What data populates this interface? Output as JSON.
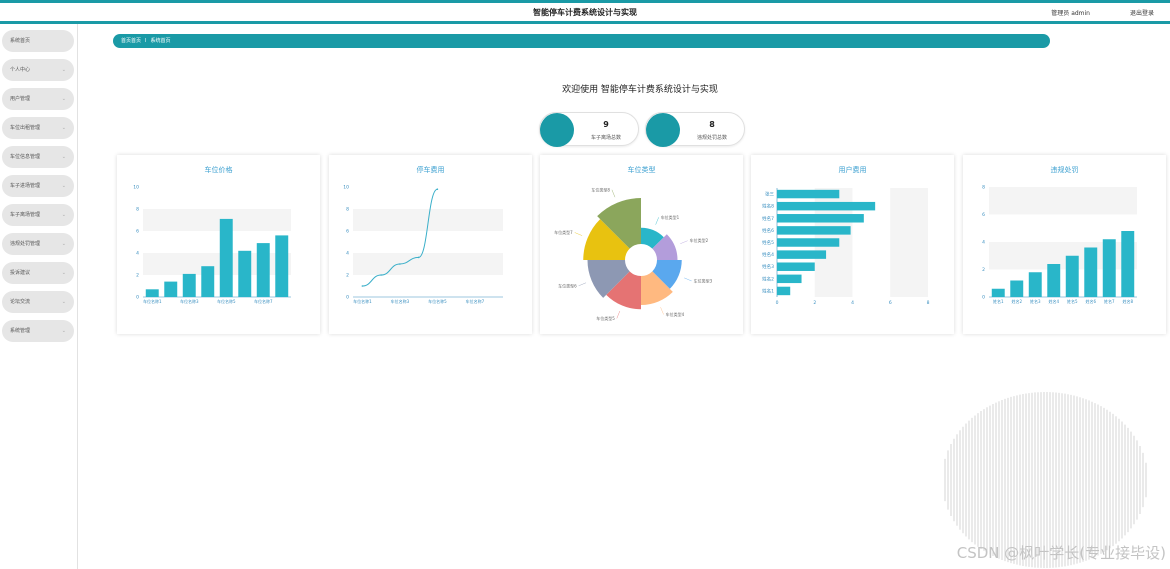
{
  "header": {
    "title": "智能停车计费系统设计与实现",
    "user": "管理员 admin",
    "logout": "退出登录"
  },
  "sidebar": {
    "items": [
      {
        "label": "系统首页",
        "has_submenu": false
      },
      {
        "label": "个人中心",
        "has_submenu": true
      },
      {
        "label": "用户管理",
        "has_submenu": true
      },
      {
        "label": "车位出租管理",
        "has_submenu": true
      },
      {
        "label": "车位信息管理",
        "has_submenu": true
      },
      {
        "label": "车子进场管理",
        "has_submenu": true
      },
      {
        "label": "车子离场管理",
        "has_submenu": true
      },
      {
        "label": "违规处罚管理",
        "has_submenu": true
      },
      {
        "label": "投诉建议",
        "has_submenu": true
      },
      {
        "label": "论坛交流",
        "has_submenu": true
      },
      {
        "label": "系统管理",
        "has_submenu": true
      }
    ]
  },
  "breadcrumb": {
    "home": "首页首页",
    "separator": "I",
    "current": "系统首页"
  },
  "welcome": "欢迎使用 智能停车计费系统设计与实现",
  "stats": [
    {
      "value": "9",
      "label": "车子离场总数"
    },
    {
      "value": "8",
      "label": "违规处罚总数"
    }
  ],
  "colors": {
    "accent": "#1a9aa6",
    "bar": "#29b6c9",
    "line": "#3aafc9",
    "title": "#3a9fd0"
  },
  "watermark": "CSDN @枫叶学长(专业接毕设)",
  "chart_data": [
    {
      "type": "bar",
      "title": "车位价格",
      "categories": [
        "车位名称1",
        "车位名称2",
        "车位名称3",
        "车位名称4",
        "车位名称5",
        "车位名称6",
        "车位名称7",
        "车位名称8"
      ],
      "category_labels_shown": [
        "车位名称1",
        "车位名称3",
        "车位名称5",
        "车位名称7"
      ],
      "values": [
        0.7,
        1.4,
        2.1,
        2.8,
        7.1,
        4.2,
        4.9,
        5.6
      ],
      "ylim": [
        0,
        10
      ],
      "yticks": [
        "0",
        "2",
        "4",
        "6",
        "8",
        "10"
      ]
    },
    {
      "type": "line",
      "title": "停车费用",
      "categories": [
        "车位名称1",
        "车位名称2",
        "车位名称3",
        "车位名称4",
        "车位名称5",
        "车位名称6",
        "车位名称7",
        "车位名称8"
      ],
      "category_labels_shown": [
        "车位名称1",
        "车位名称3",
        "车位名称5",
        "车位名称7"
      ],
      "values": [
        1.0,
        2.0,
        3.0,
        3.6,
        9.8,
        null,
        null,
        null
      ],
      "ylim": [
        0,
        10
      ],
      "yticks": [
        "0",
        "2",
        "4",
        "6",
        "8",
        "10"
      ]
    },
    {
      "type": "pie",
      "title": "车位类型",
      "labels": [
        "车位类型1",
        "车位类型2",
        "车位类型3",
        "车位类型4",
        "车位类型5",
        "车位类型6",
        "车位类型7",
        "车位类型8"
      ],
      "values": [
        1,
        2,
        3,
        4,
        5,
        6,
        7,
        8
      ],
      "colors": [
        "#29b6c9",
        "#b39ddb",
        "#5aa8ee",
        "#ffb980",
        "#e57373",
        "#8d98b3",
        "#e8c210",
        "#8ba65c"
      ]
    },
    {
      "type": "bar",
      "orientation": "horizontal",
      "title": "用户费用",
      "categories": [
        "张三",
        "姓名8",
        "姓名7",
        "姓名6",
        "姓名5",
        "姓名4",
        "姓名3",
        "姓名2",
        "姓名1"
      ],
      "values": [
        3.3,
        5.2,
        4.6,
        3.9,
        3.3,
        2.6,
        2.0,
        1.3,
        0.7
      ],
      "xlim": [
        0,
        8
      ],
      "xticks": [
        "0",
        "2",
        "4",
        "6",
        "8"
      ]
    },
    {
      "type": "bar",
      "title": "违规处罚",
      "categories": [
        "姓名1",
        "姓名2",
        "姓名3",
        "姓名4",
        "姓名5",
        "姓名6",
        "姓名7",
        "姓名8"
      ],
      "values": [
        0.6,
        1.2,
        1.8,
        2.4,
        3.0,
        3.6,
        4.2,
        4.8
      ],
      "ylim": [
        0,
        8
      ],
      "yticks": [
        "0",
        "2",
        "4",
        "6",
        "8"
      ]
    }
  ]
}
